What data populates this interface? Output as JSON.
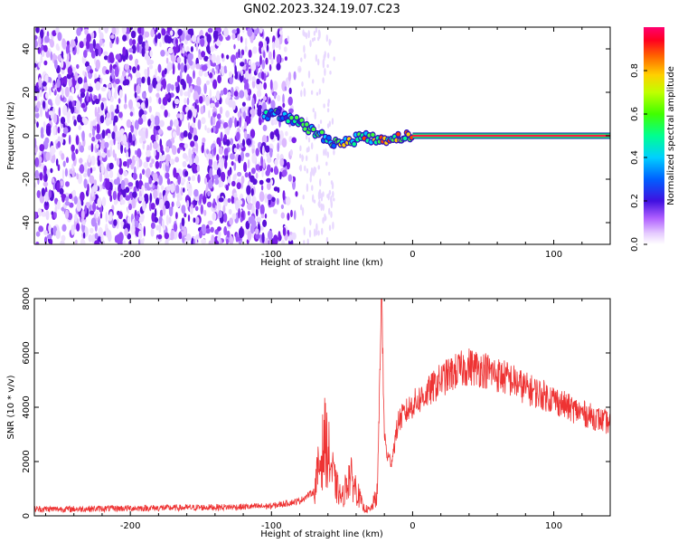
{
  "title": "GN02.2023.324.19.07.C23",
  "chart_data": [
    {
      "type": "heatmap",
      "xlabel": "Height of straight line (km)",
      "ylabel": "Frequency (Hz)",
      "xlim": [
        -268,
        140
      ],
      "ylim": [
        -50,
        50
      ],
      "xticks": [
        -200,
        -100,
        0,
        100
      ],
      "yticks": [
        -40,
        -20,
        0,
        20,
        40
      ],
      "colorbar": {
        "label": "Normalized spectral amplitude",
        "range": [
          0.0,
          1.0
        ],
        "ticks": [
          0.0,
          0.2,
          0.4,
          0.6,
          0.8
        ],
        "colormap": [
          "#ffffff",
          "#d9b8ff",
          "#8a2be2",
          "#3a1dd8",
          "#0040ff",
          "#00c8ff",
          "#00ff80",
          "#80ff00",
          "#ffff00",
          "#ff8000",
          "#ff0000",
          "#ff0066"
        ]
      },
      "features": {
        "noise_region_x": [
          -268,
          -80
        ],
        "sparse_noise_x": [
          -80,
          -55
        ],
        "drifting_signal": [
          {
            "x": -105,
            "y": 9
          },
          {
            "x": -95,
            "y": 10
          },
          {
            "x": -85,
            "y": 8
          },
          {
            "x": -75,
            "y": 4
          },
          {
            "x": -65,
            "y": 0
          },
          {
            "x": -55,
            "y": -3
          },
          {
            "x": -45,
            "y": -3
          },
          {
            "x": -35,
            "y": 0
          },
          {
            "x": -25,
            "y": -2
          },
          {
            "x": -15,
            "y": -1
          },
          {
            "x": 0,
            "y": 0
          }
        ],
        "steady_carrier": {
          "x_start": 0,
          "x_end": 140,
          "freq": 0,
          "amplitude": 0.9
        }
      }
    },
    {
      "type": "line",
      "xlabel": "Height of straight line (km)",
      "ylabel": "SNR (10 * v/v)",
      "xlim": [
        -268,
        140
      ],
      "ylim": [
        0,
        8000
      ],
      "xticks": [
        -200,
        -100,
        0,
        100
      ],
      "yticks": [
        0,
        2000,
        4000,
        6000,
        8000
      ],
      "color": "#ee3333",
      "series": [
        {
          "x": [
            -268,
            -240,
            -200,
            -160,
            -120,
            -100,
            -80,
            -70,
            -62,
            -55,
            -50,
            -45,
            -40,
            -35,
            -30,
            -25,
            -22,
            -20,
            -18,
            -15,
            -10,
            -5,
            0,
            10,
            20,
            30,
            40,
            50,
            60,
            70,
            80,
            90,
            100,
            110,
            120,
            130,
            140
          ],
          "y": [
            250,
            250,
            280,
            300,
            330,
            360,
            550,
            900,
            2800,
            1200,
            600,
            1500,
            1000,
            300,
            200,
            800,
            8000,
            3000,
            2200,
            2000,
            3500,
            3800,
            4100,
            4500,
            5000,
            5300,
            5500,
            5400,
            5200,
            5000,
            4700,
            4500,
            4300,
            4000,
            3800,
            3600,
            3400
          ]
        }
      ]
    }
  ]
}
